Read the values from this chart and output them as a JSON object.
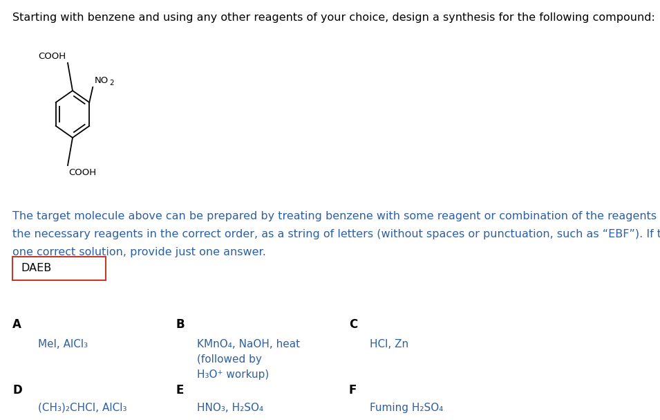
{
  "title_text": "Starting with benzene and using any other reagents of your choice, design a synthesis for the following compound:",
  "title_color": "#000000",
  "title_fontsize": 11.5,
  "paragraph_color": "#2e5fa3",
  "paragraph_line1": "The target molecule above can be prepared by treating benzene with some reagent or combination of the reagents listed below. Give",
  "paragraph_line2": "the necessary reagents in the correct order, as a string of letters (without spaces or punctuation, such as “EBF”). If there is more than",
  "paragraph_line3": "one correct solution, provide just one answer.",
  "answer_text": "DAEB",
  "answer_box_color": "#c0392b",
  "answer_text_color": "#000000",
  "reagent_label_color": "#000000",
  "reagent_text_color": "#2e5fa3",
  "background_color": "#ffffff",
  "fig_width": 9.55,
  "fig_height": 6.07,
  "dpi": 100
}
